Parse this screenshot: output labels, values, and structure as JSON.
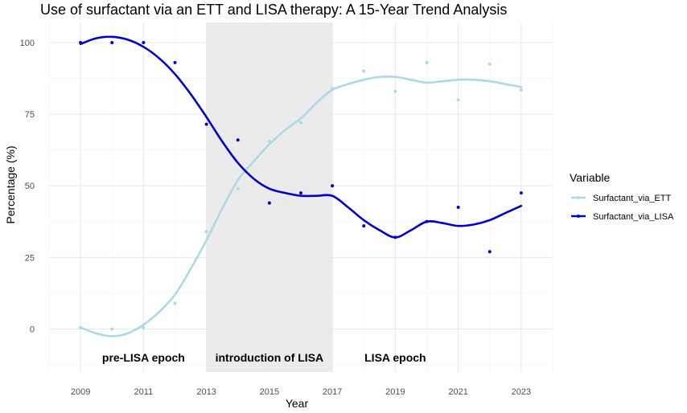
{
  "chart_data": {
    "type": "scatter",
    "title": "Use of surfactant via an ETT and LISA therapy: A 15-Year Trend Analysis",
    "xlabel": "Year",
    "ylabel": "Percentage (%)",
    "xlim": [
      2008,
      2024
    ],
    "ylim": [
      -15,
      107
    ],
    "x_ticks": [
      2009,
      2011,
      2013,
      2015,
      2017,
      2019,
      2021,
      2023
    ],
    "y_ticks": [
      0,
      25,
      50,
      75,
      100
    ],
    "grid": true,
    "legend": {
      "title": "Variable",
      "position": "right"
    },
    "x": [
      2009,
      2010,
      2011,
      2012,
      2013,
      2014,
      2015,
      2016,
      2017,
      2018,
      2019,
      2020,
      2021,
      2022,
      2023
    ],
    "series": [
      {
        "name": "Surfactant_via_ETT",
        "color": "#add8e6",
        "points": [
          0.5,
          0,
          0.5,
          9,
          34,
          49,
          65.5,
          72,
          84,
          90,
          83,
          93,
          80,
          92.5,
          83.5
        ],
        "smooth": [
          [
            2009,
            0.5
          ],
          [
            2009.5,
            -1.5
          ],
          [
            2010,
            -2.5
          ],
          [
            2010.5,
            -1.5
          ],
          [
            2011,
            1.5
          ],
          [
            2011.5,
            6
          ],
          [
            2012,
            12
          ],
          [
            2012.5,
            21
          ],
          [
            2013,
            31
          ],
          [
            2013.5,
            42
          ],
          [
            2014,
            52
          ],
          [
            2014.5,
            58.5
          ],
          [
            2015,
            64.5
          ],
          [
            2015.5,
            69.5
          ],
          [
            2016,
            73.5
          ],
          [
            2016.5,
            79
          ],
          [
            2017,
            83.5
          ],
          [
            2017.5,
            85.5
          ],
          [
            2018,
            87
          ],
          [
            2018.5,
            88
          ],
          [
            2019,
            88
          ],
          [
            2019.5,
            87
          ],
          [
            2020,
            86
          ],
          [
            2020.5,
            86.5
          ],
          [
            2021,
            87
          ],
          [
            2021.5,
            87
          ],
          [
            2022,
            86.5
          ],
          [
            2022.5,
            85.5
          ],
          [
            2023,
            84.5
          ]
        ]
      },
      {
        "name": "Surfactant_via_LISA",
        "color": "#0000cd",
        "points": [
          100,
          100,
          100,
          93,
          71.5,
          66,
          44,
          47.5,
          50,
          36,
          32,
          37.5,
          42.5,
          27,
          47.5
        ],
        "smooth": [
          [
            2009,
            99.5
          ],
          [
            2009.5,
            101.5
          ],
          [
            2010,
            102
          ],
          [
            2010.5,
            101
          ],
          [
            2011,
            98.5
          ],
          [
            2011.5,
            94.5
          ],
          [
            2012,
            89
          ],
          [
            2012.5,
            82
          ],
          [
            2013,
            74
          ],
          [
            2013.5,
            65.5
          ],
          [
            2014,
            58
          ],
          [
            2014.5,
            52.5
          ],
          [
            2015,
            49
          ],
          [
            2015.5,
            47.5
          ],
          [
            2016,
            46.5
          ],
          [
            2016.5,
            46.5
          ],
          [
            2017,
            46.5
          ],
          [
            2017.5,
            42.5
          ],
          [
            2018,
            38
          ],
          [
            2018.5,
            34.5
          ],
          [
            2019,
            32
          ],
          [
            2019.5,
            34.5
          ],
          [
            2020,
            37.5
          ],
          [
            2020.5,
            37
          ],
          [
            2021,
            36
          ],
          [
            2021.5,
            36.5
          ],
          [
            2022,
            38
          ],
          [
            2022.5,
            40.5
          ],
          [
            2023,
            43
          ]
        ]
      }
    ],
    "shaded_region": {
      "x": [
        2013,
        2017
      ],
      "color": "#ebebeb"
    },
    "annotations": [
      {
        "text": "pre-LISA epoch",
        "x": 2011,
        "y": -10
      },
      {
        "text": "introduction of LISA",
        "x": 2015,
        "y": -10
      },
      {
        "text": "LISA epoch",
        "x": 2019,
        "y": -10
      }
    ]
  }
}
